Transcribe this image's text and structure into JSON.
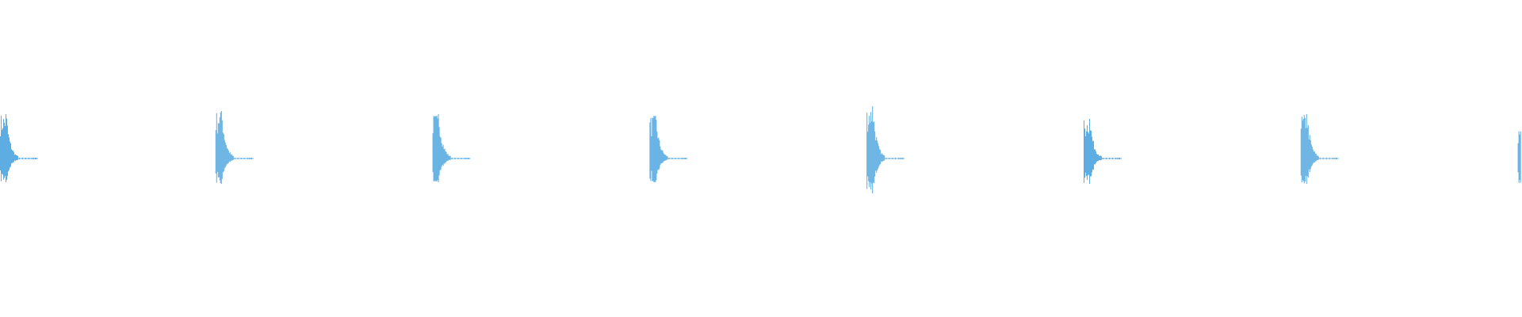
{
  "waveform": {
    "color": "#5dade2",
    "background": "#ffffff",
    "bursts": [
      {
        "peak_up": 0.28,
        "peak_down": 0.15
      },
      {
        "peak_up": 0.3,
        "peak_down": 0.16
      },
      {
        "peak_up": 0.28,
        "peak_down": 0.15
      },
      {
        "peak_up": 0.27,
        "peak_down": 0.15
      },
      {
        "peak_up": 0.33,
        "peak_down": 0.22
      },
      {
        "peak_up": 0.25,
        "peak_down": 0.16
      },
      {
        "peak_up": 0.28,
        "peak_down": 0.16
      },
      {
        "peak_up": 0.19,
        "peak_down": 0.17
      }
    ]
  }
}
